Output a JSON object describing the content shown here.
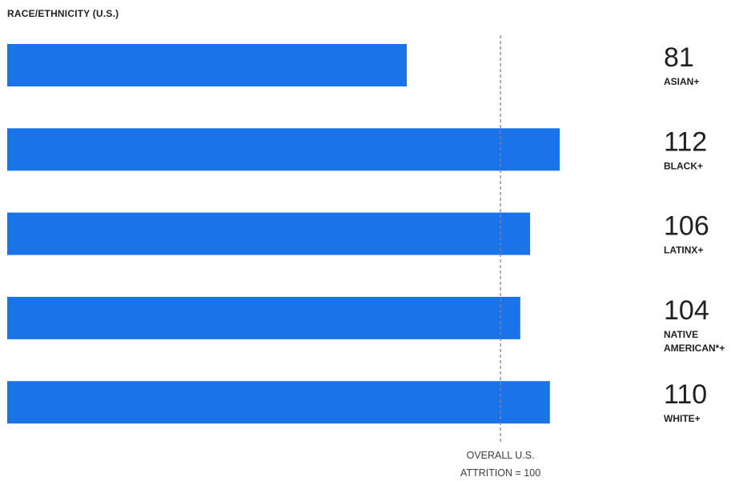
{
  "chart_data": {
    "type": "bar",
    "orientation": "horizontal",
    "title": "RACE/ETHNICITY  (U.S.)",
    "categories": [
      "ASIAN+",
      "BLACK+",
      "LATINX+",
      "NATIVE AMERICAN*+",
      "WHITE+"
    ],
    "category_lines": [
      [
        "ASIAN+"
      ],
      [
        "BLACK+"
      ],
      [
        "LATINX+"
      ],
      [
        "NATIVE",
        "AMERICAN*+"
      ],
      [
        "WHITE+"
      ]
    ],
    "values": [
      81,
      112,
      106,
      104,
      110
    ],
    "value_labels": [
      "81",
      "112",
      "106",
      "104",
      "110"
    ],
    "xlim": [
      0,
      161
    ],
    "reference_line": {
      "value": 100,
      "label_lines": [
        "OVERALL U.S.",
        "ATTRITION = 100"
      ],
      "style": "dashed"
    },
    "grid": false,
    "legend": "none",
    "colors": {
      "bar": "#1a73e8",
      "reference_line": "#80868b",
      "text": "#202124"
    }
  }
}
